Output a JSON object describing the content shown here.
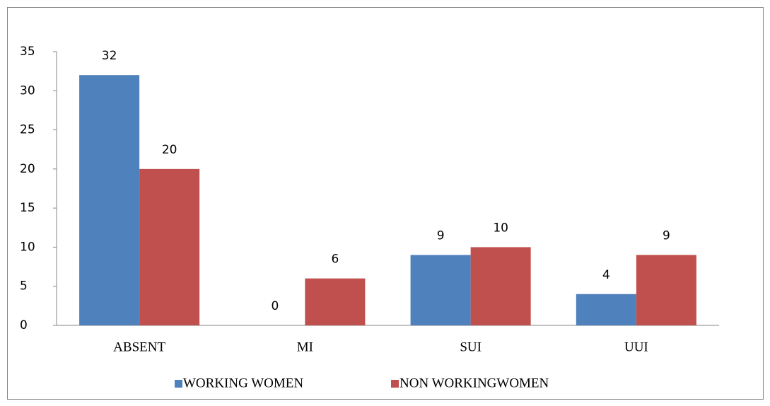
{
  "chart_data": {
    "type": "bar",
    "categories": [
      "ABSENT",
      "MI",
      "SUI",
      "UUI"
    ],
    "series": [
      {
        "name": "WORKING WOMEN",
        "color": "#4f81bd",
        "values": [
          32,
          0,
          9,
          4
        ]
      },
      {
        "name": "NON WORKINGWOMEN",
        "color": "#c0504d",
        "values": [
          20,
          6,
          10,
          9
        ]
      }
    ],
    "ylim": [
      0,
      35
    ],
    "yticks": [
      0,
      5,
      10,
      15,
      20,
      25,
      30,
      35
    ],
    "grid": false,
    "legend": "bottom"
  }
}
